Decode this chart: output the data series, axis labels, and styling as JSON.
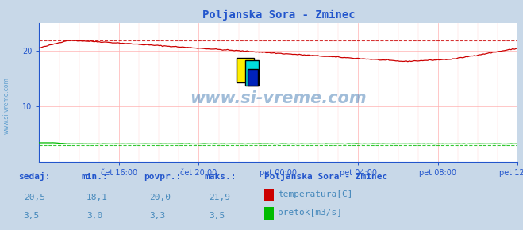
{
  "title": "Poljanska Sora - Zminec",
  "bg_color": "#c8d8e8",
  "plot_bg_color": "#ffffff",
  "grid_color": "#ffb0b0",
  "x_labels": [
    "čet 16:00",
    "čet 20:00",
    "pet 00:00",
    "pet 04:00",
    "pet 08:00",
    "pet 12:00"
  ],
  "y_ticks": [
    10,
    20
  ],
  "y_min": 0,
  "y_max": 25,
  "temp_min": 18.1,
  "temp_max": 21.9,
  "flow_min": 3.0,
  "flow_max": 3.5,
  "flow_avg": 3.3,
  "temp_color": "#cc0000",
  "flow_color": "#00bb00",
  "watermark_color": "#5588bb",
  "title_color": "#2255cc",
  "tick_color": "#2255cc",
  "table_header_color": "#2255cc",
  "table_value_color": "#4488bb",
  "legend_title_color": "#2255cc",
  "sidebar_text_color": "#5599cc",
  "n_points": 288,
  "values_row1": [
    "20,5",
    "18,1",
    "20,0",
    "21,9"
  ],
  "values_row2": [
    "3,5",
    "3,0",
    "3,3",
    "3,5"
  ],
  "headers": [
    "sedaj:",
    "min.:",
    "povpr.:",
    "maks.:"
  ]
}
